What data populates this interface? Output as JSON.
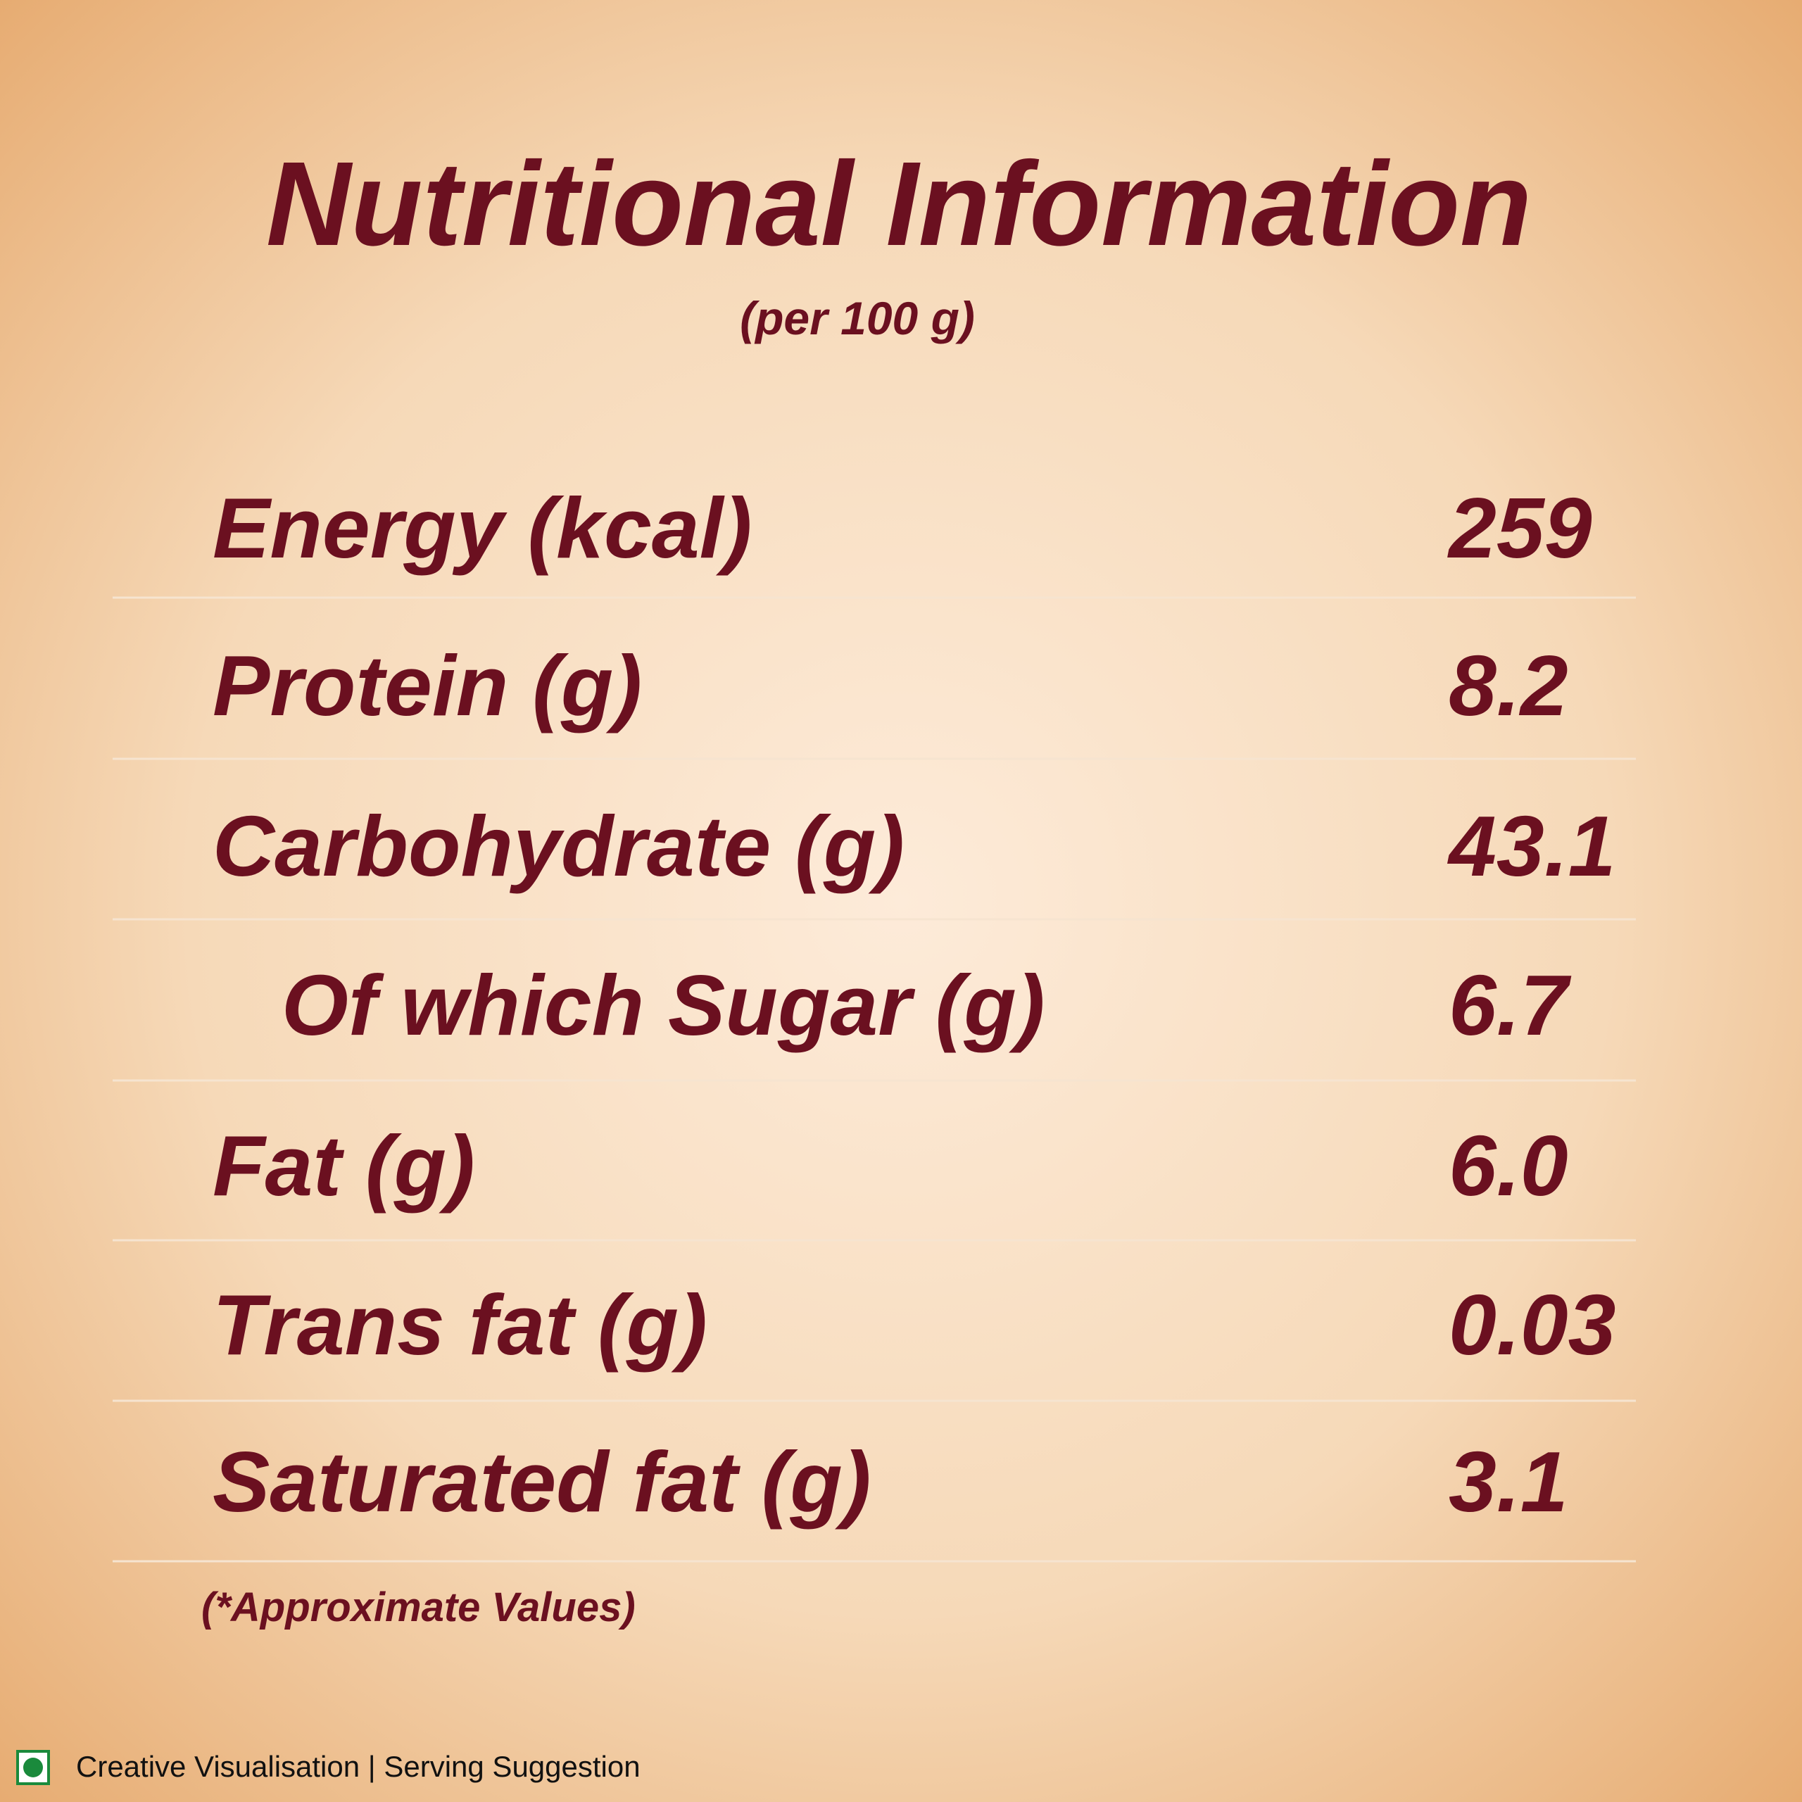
{
  "header": {
    "title": "Nutritional Information",
    "subtitle": "(per 100 g)"
  },
  "table": {
    "rows": [
      [
        "Energy (kcal)",
        "259"
      ],
      [
        "Protein (g)",
        "8.2"
      ],
      [
        "Carbohydrate (g)",
        "43.1"
      ],
      [
        "Of which Sugar (g)",
        "6.7"
      ],
      [
        "Fat (g)",
        "6.0"
      ],
      [
        "Trans fat (g)",
        "0.03"
      ],
      [
        "Saturated fat (g)",
        "3.1"
      ]
    ]
  },
  "footnote": "(*Approximate Values)",
  "footer": "Creative Visualisation | Serving Suggestion"
}
